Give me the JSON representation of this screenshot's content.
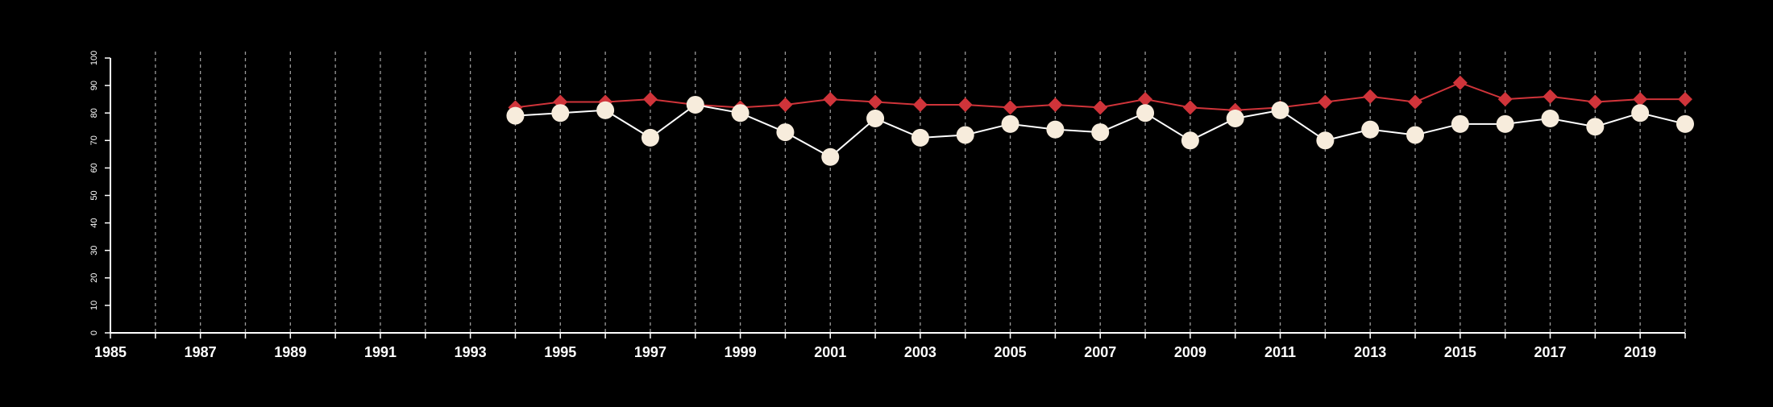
{
  "chart_data": {
    "type": "line",
    "title": "",
    "xlabel": "",
    "ylabel": "",
    "xlim": [
      1985,
      2020
    ],
    "ylim": [
      0,
      100
    ],
    "x_tick_labels": [
      "1985",
      "1987",
      "1989",
      "1991",
      "1993",
      "1995",
      "1997",
      "1999",
      "2001",
      "2003",
      "2005",
      "2007",
      "2009",
      "2011",
      "2013",
      "2015",
      "2017",
      "2019"
    ],
    "y_tick_labels": [
      "0",
      "10",
      "20",
      "30",
      "40",
      "50",
      "60",
      "70",
      "80",
      "90",
      "100"
    ],
    "grid": "vertical dashed lines at every year",
    "background_color": "#000000",
    "x": [
      1994,
      1995,
      1996,
      1997,
      1998,
      1999,
      2000,
      2001,
      2002,
      2003,
      2004,
      2005,
      2006,
      2007,
      2008,
      2009,
      2010,
      2011,
      2012,
      2013,
      2014,
      2015,
      2016,
      2017,
      2018,
      2019,
      2020
    ],
    "series": [
      {
        "marker": "diamond",
        "color": "#d0343a",
        "values": [
          82,
          84,
          84,
          85,
          83,
          82,
          83,
          85,
          84,
          83,
          83,
          82,
          83,
          82,
          85,
          82,
          81,
          82,
          84,
          86,
          84,
          91,
          85,
          86,
          84,
          85,
          85
        ]
      },
      {
        "marker": "circle",
        "color": "#f7ecdc",
        "line_color": "#ffffff",
        "values": [
          79,
          80,
          81,
          71,
          83,
          80,
          73,
          64,
          78,
          71,
          72,
          76,
          74,
          73,
          80,
          70,
          78,
          81,
          70,
          74,
          72,
          76,
          76,
          78,
          75,
          80,
          76
        ]
      }
    ]
  }
}
